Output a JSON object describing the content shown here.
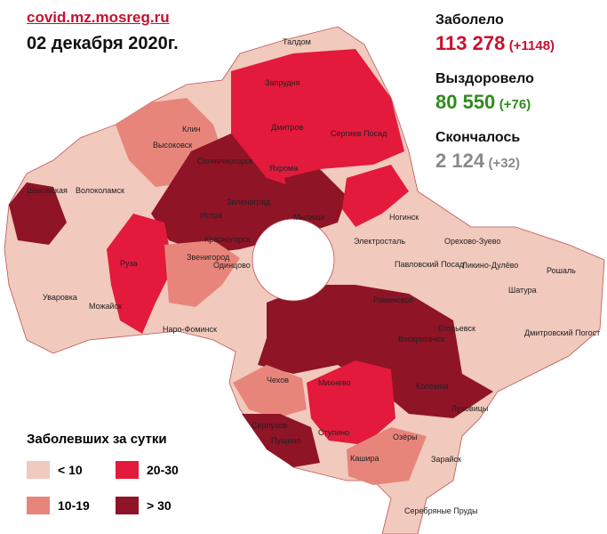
{
  "header": {
    "source": "covid.mz.mosreg.ru",
    "date": "02 декабря 2020г."
  },
  "stats": [
    {
      "label": "Заболело",
      "value": "113 278",
      "delta": "(+1148)",
      "color": "#c8102e"
    },
    {
      "label": "Выздоровело",
      "value": "80 550",
      "delta": "(+76)",
      "color": "#2e8b1e"
    },
    {
      "label": "Скончалось",
      "value": "2 124",
      "delta": "(+32)",
      "color": "#8a8a8a"
    }
  ],
  "legend": {
    "title": "Заболевших за сутки",
    "items": [
      {
        "label": "< 10",
        "color": "#f1c9bd"
      },
      {
        "label": "10-19",
        "color": "#e8857b"
      },
      {
        "label": "20-30",
        "color": "#e31a3c"
      },
      {
        "label": "> 30",
        "color": "#8e1426"
      }
    ]
  },
  "places": [
    "Талдом",
    "Запрудня",
    "Клин",
    "Высоковск",
    "Дмитров",
    "Яхрома",
    "Сергиев Посад",
    "Солнечногорск",
    "Шаховская",
    "Волоколамск",
    "Зеленоград",
    "Истра",
    "Мытищи",
    "Ногинск",
    "Электросталь",
    "Орехово-Зуево",
    "Руза",
    "Звенигород",
    "Красногорск",
    "Одинцово",
    "Павловский Посад",
    "Ликино-Дулёво",
    "Рошаль",
    "Уваровка",
    "Можайск",
    "Шатура",
    "Раменское",
    "Наро-Фоминск",
    "Егорьевск",
    "Дмитровский Погост",
    "Воскресенск",
    "Чехов",
    "Михнево",
    "Коломна",
    "Серпухов",
    "Пущино",
    "Ступино",
    "Озёры",
    "Луховицы",
    "Кашира",
    "Зарайск",
    "Серебряные Пруды"
  ]
}
